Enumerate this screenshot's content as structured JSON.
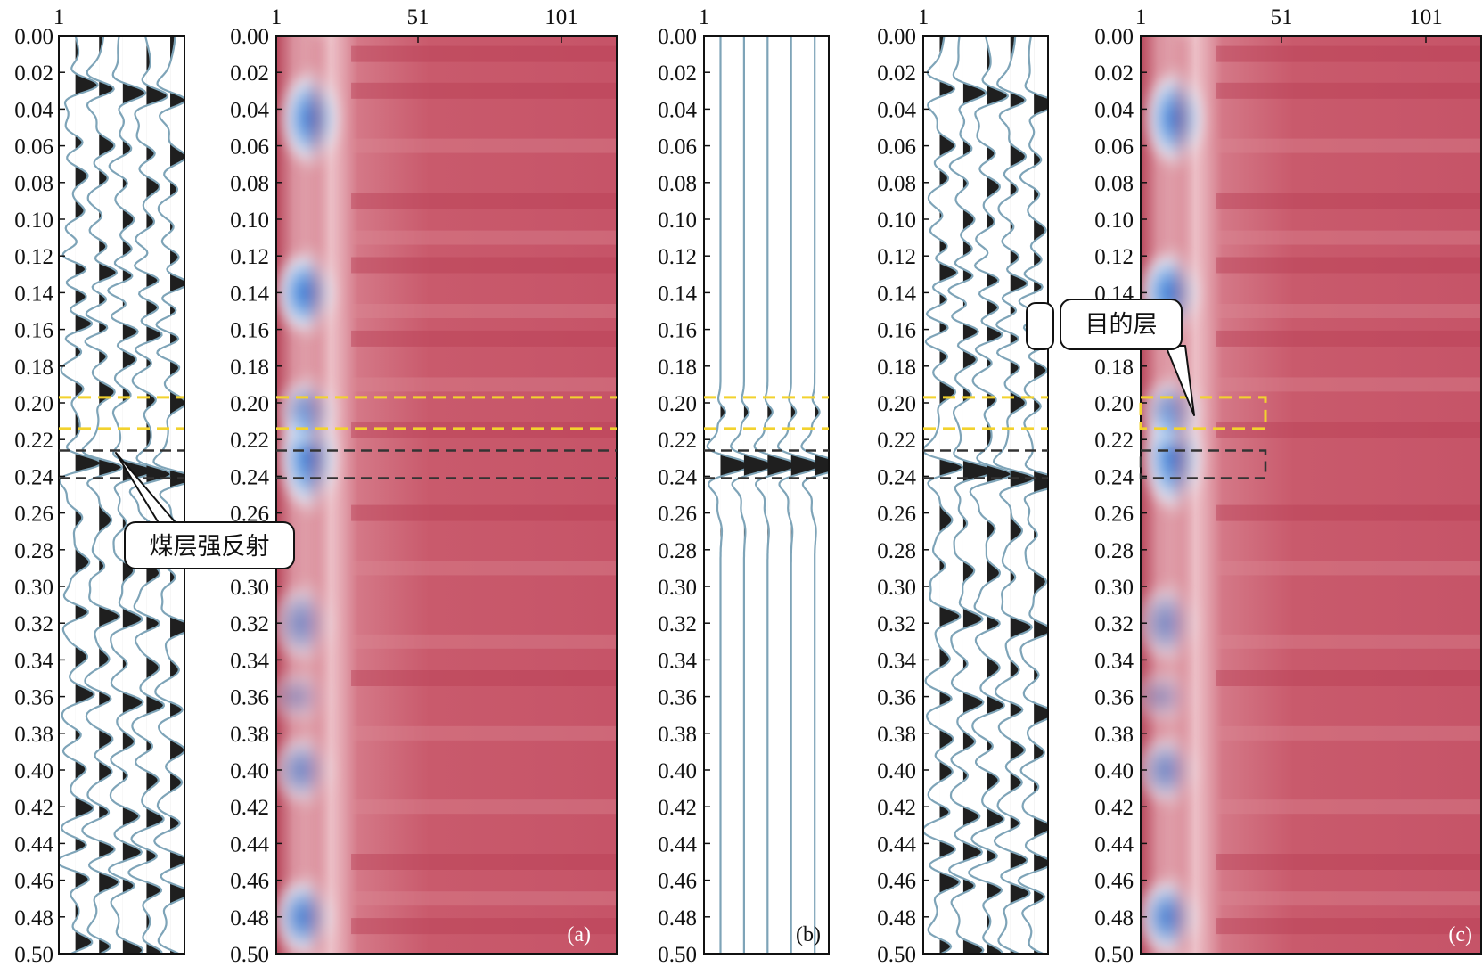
{
  "figure": {
    "depth_axis": {
      "min": 0.0,
      "max": 0.5,
      "labels": [
        "0.00",
        "0.02",
        "0.04",
        "0.06",
        "0.08",
        "0.10",
        "0.12",
        "0.14",
        "0.16",
        "0.18",
        "0.20",
        "0.22",
        "0.24",
        "0.26",
        "0.28",
        "0.30",
        "0.32",
        "0.34",
        "0.36",
        "0.38",
        "0.40",
        "0.42",
        "0.44",
        "0.46",
        "0.48",
        "0.50"
      ]
    },
    "trace_axis_labels": [
      "1",
      "51",
      "101"
    ],
    "panel_labels": [
      "(a)",
      "(b)",
      "(c)"
    ],
    "target_layer_window": [
      0.197,
      0.214
    ],
    "coal_layer_window": [
      0.226,
      0.241
    ],
    "colors": {
      "target_marker": "#f2d22e",
      "coal_marker": "#333333",
      "heatmap_base": "#c9596b",
      "heatmap_low": "#3a7fd5",
      "trace_line": "#7ea4b8",
      "trace_fill": "#1f1f1f"
    }
  },
  "annotations": {
    "coal_reflection": "煤层强反射",
    "target_layer": "目的层"
  }
}
